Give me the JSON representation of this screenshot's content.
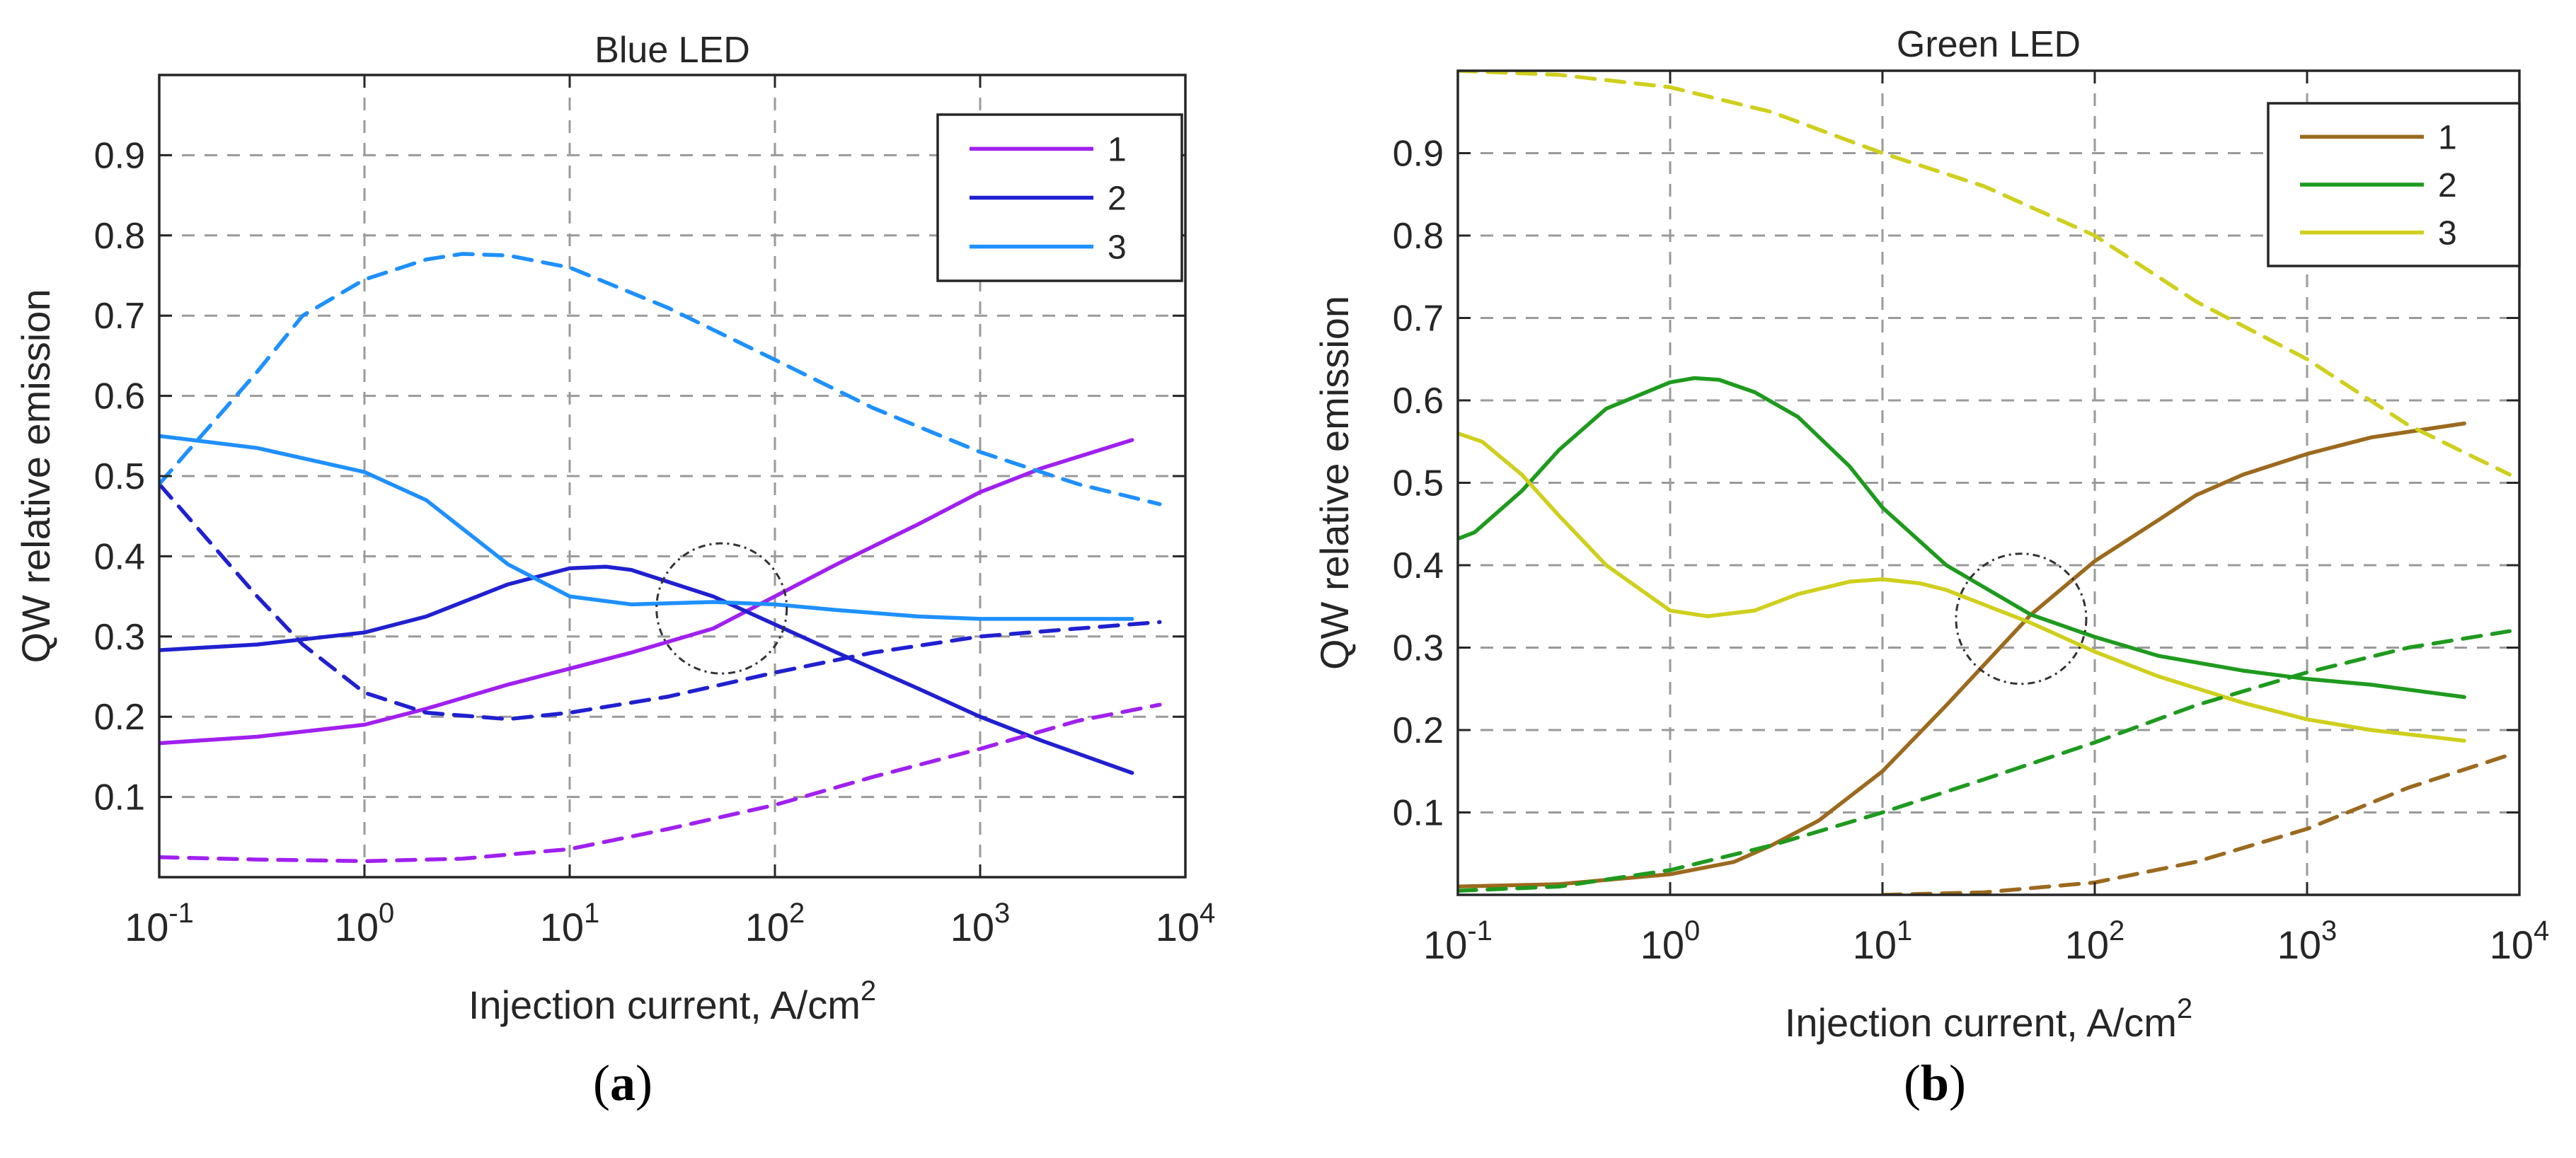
{
  "panels": {
    "a": {
      "label_open": "(",
      "label_letter": "a",
      "label_close": ")"
    },
    "b": {
      "label_open": "(",
      "label_letter": "b",
      "label_close": ")"
    }
  },
  "chart_data": [
    {
      "type": "line",
      "title": "Blue LED",
      "xlabel": "Injection current, A/cm",
      "xlabel_sup": "2",
      "ylabel": "QW relative emission",
      "xscale": "log",
      "xlim": [
        0.1,
        10000
      ],
      "ylim": [
        0,
        1
      ],
      "xticks": [
        {
          "base": "10",
          "exp": "-1"
        },
        {
          "base": "10",
          "exp": "0"
        },
        {
          "base": "10",
          "exp": "1"
        },
        {
          "base": "10",
          "exp": "2"
        },
        {
          "base": "10",
          "exp": "3"
        },
        {
          "base": "10",
          "exp": "4"
        }
      ],
      "xtick_values": [
        0.1,
        1,
        10,
        100,
        1000,
        10000
      ],
      "yticks": [
        "0.1",
        "0.2",
        "0.3",
        "0.4",
        "0.5",
        "0.6",
        "0.7",
        "0.8",
        "0.9"
      ],
      "ytick_values": [
        0.1,
        0.2,
        0.3,
        0.4,
        0.5,
        0.6,
        0.7,
        0.8,
        0.9
      ],
      "grid": true,
      "legend_position": "top-right",
      "annotation": {
        "type": "circle",
        "x": 55,
        "y": 0.335
      },
      "series": [
        {
          "name": "1",
          "color": "#a020f0",
          "style": "solid",
          "x": [
            0.1,
            0.3,
            1,
            2,
            5,
            10,
            20,
            50,
            100,
            200,
            500,
            1000,
            2000,
            5500
          ],
          "y": [
            0.167,
            0.175,
            0.19,
            0.21,
            0.24,
            0.26,
            0.28,
            0.31,
            0.35,
            0.39,
            0.44,
            0.48,
            0.51,
            0.545
          ]
        },
        {
          "name": "2",
          "color": "#2020d0",
          "style": "solid",
          "x": [
            0.1,
            0.3,
            1,
            2,
            5,
            10,
            15,
            20,
            50,
            100,
            200,
            500,
            1000,
            2000,
            5500
          ],
          "y": [
            0.283,
            0.29,
            0.305,
            0.325,
            0.365,
            0.385,
            0.387,
            0.383,
            0.35,
            0.315,
            0.28,
            0.235,
            0.2,
            0.17,
            0.13
          ]
        },
        {
          "name": "3",
          "color": "#1e90ff",
          "style": "solid",
          "x": [
            0.1,
            0.3,
            1,
            2,
            5,
            10,
            20,
            50,
            100,
            200,
            500,
            1000,
            2000,
            5500
          ],
          "y": [
            0.55,
            0.535,
            0.505,
            0.47,
            0.39,
            0.35,
            0.34,
            0.343,
            0.34,
            0.333,
            0.325,
            0.322,
            0.322,
            0.322
          ]
        },
        {
          "name": "",
          "color": "#a020f0",
          "style": "dashed",
          "x": [
            0.1,
            0.3,
            1,
            3,
            10,
            30,
            100,
            300,
            1000,
            3000,
            7500
          ],
          "y": [
            0.025,
            0.022,
            0.02,
            0.023,
            0.035,
            0.06,
            0.09,
            0.125,
            0.16,
            0.195,
            0.215
          ]
        },
        {
          "name": "",
          "color": "#2020d0",
          "style": "dashed",
          "x": [
            0.1,
            0.3,
            0.5,
            1,
            2,
            5,
            10,
            30,
            100,
            300,
            1000,
            3000,
            7500
          ],
          "y": [
            0.49,
            0.35,
            0.29,
            0.23,
            0.205,
            0.197,
            0.205,
            0.225,
            0.255,
            0.28,
            0.3,
            0.31,
            0.318
          ]
        },
        {
          "name": "",
          "color": "#1e90ff",
          "style": "dashed",
          "x": [
            0.1,
            0.3,
            0.5,
            1,
            2,
            3,
            5,
            10,
            30,
            100,
            300,
            1000,
            3000,
            7500
          ],
          "y": [
            0.49,
            0.63,
            0.7,
            0.745,
            0.77,
            0.777,
            0.775,
            0.76,
            0.71,
            0.645,
            0.585,
            0.53,
            0.49,
            0.465
          ]
        }
      ]
    },
    {
      "type": "line",
      "title": "Green LED",
      "xlabel": "Injection current, A/cm",
      "xlabel_sup": "2",
      "ylabel": "QW relative emission",
      "xscale": "log",
      "xlim": [
        0.1,
        10000
      ],
      "ylim": [
        0,
        1
      ],
      "xticks": [
        {
          "base": "10",
          "exp": "-1"
        },
        {
          "base": "10",
          "exp": "0"
        },
        {
          "base": "10",
          "exp": "1"
        },
        {
          "base": "10",
          "exp": "2"
        },
        {
          "base": "10",
          "exp": "3"
        },
        {
          "base": "10",
          "exp": "4"
        }
      ],
      "xtick_values": [
        0.1,
        1,
        10,
        100,
        1000,
        10000
      ],
      "yticks": [
        "0.1",
        "0.2",
        "0.3",
        "0.4",
        "0.5",
        "0.6",
        "0.7",
        "0.8",
        "0.9"
      ],
      "ytick_values": [
        0.1,
        0.2,
        0.3,
        0.4,
        0.5,
        0.6,
        0.7,
        0.8,
        0.9
      ],
      "grid": true,
      "legend_position": "top-right",
      "annotation": {
        "type": "circle",
        "x": 45,
        "y": 0.335
      },
      "series": [
        {
          "name": "1",
          "color": "#9b6a1e",
          "style": "solid",
          "x": [
            0.1,
            0.3,
            1,
            2,
            3,
            5,
            10,
            20,
            50,
            100,
            200,
            300,
            500,
            1000,
            2000,
            5500
          ],
          "y": [
            0.01,
            0.013,
            0.025,
            0.04,
            0.06,
            0.09,
            0.15,
            0.23,
            0.34,
            0.405,
            0.455,
            0.485,
            0.51,
            0.535,
            0.555,
            0.572
          ]
        },
        {
          "name": "2",
          "color": "#1e9a1e",
          "style": "solid",
          "x": [
            0.1,
            0.12,
            0.2,
            0.3,
            0.5,
            1,
            1.3,
            1.7,
            2.5,
            4,
            7,
            10,
            20,
            50,
            100,
            200,
            500,
            1000,
            2000,
            5500
          ],
          "y": [
            0.432,
            0.44,
            0.49,
            0.54,
            0.59,
            0.622,
            0.627,
            0.625,
            0.61,
            0.58,
            0.52,
            0.47,
            0.4,
            0.34,
            0.313,
            0.29,
            0.272,
            0.262,
            0.255,
            0.24
          ]
        },
        {
          "name": "3",
          "color": "#cfcf1e",
          "style": "solid",
          "x": [
            0.1,
            0.13,
            0.2,
            0.3,
            0.5,
            1,
            1.5,
            2.5,
            4,
            7,
            10,
            15,
            20,
            50,
            100,
            200,
            500,
            1000,
            2000,
            5500
          ],
          "y": [
            0.56,
            0.55,
            0.51,
            0.46,
            0.4,
            0.345,
            0.338,
            0.345,
            0.365,
            0.38,
            0.383,
            0.378,
            0.37,
            0.33,
            0.295,
            0.265,
            0.233,
            0.213,
            0.2,
            0.187
          ]
        },
        {
          "name": "",
          "color": "#9b6a1e",
          "style": "dashed",
          "x": [
            10,
            30,
            100,
            300,
            1000,
            3000,
            9000
          ],
          "y": [
            0.0,
            0.003,
            0.015,
            0.04,
            0.08,
            0.13,
            0.17
          ]
        },
        {
          "name": "",
          "color": "#1e9a1e",
          "style": "dashed",
          "x": [
            0.1,
            0.3,
            1,
            3,
            10,
            30,
            100,
            300,
            1000,
            3000,
            9000
          ],
          "y": [
            0.005,
            0.01,
            0.03,
            0.06,
            0.1,
            0.14,
            0.185,
            0.23,
            0.27,
            0.3,
            0.32
          ]
        },
        {
          "name": "",
          "color": "#cfcf1e",
          "style": "dashed",
          "x": [
            0.1,
            0.3,
            1,
            3,
            10,
            30,
            100,
            300,
            1000,
            3000,
            9000
          ],
          "y": [
            1.0,
            0.995,
            0.98,
            0.95,
            0.9,
            0.86,
            0.8,
            0.72,
            0.65,
            0.57,
            0.51
          ]
        }
      ]
    }
  ]
}
